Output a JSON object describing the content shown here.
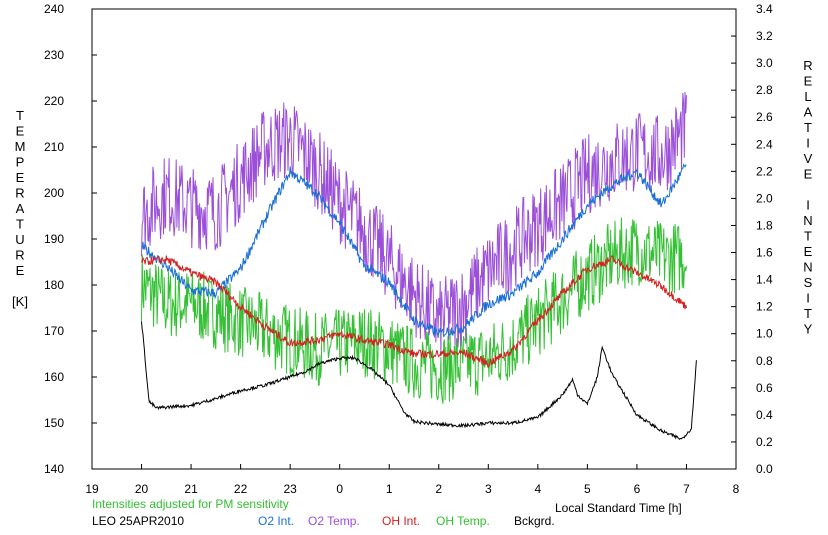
{
  "chart_data": {
    "type": "line",
    "title": "",
    "xlabel": "Local Standard Time [h]",
    "ylabel_left": [
      "T",
      "E",
      "M",
      "P",
      "E",
      "R",
      "A",
      "T",
      "U",
      "R",
      "E",
      "",
      "[K]"
    ],
    "ylabel_right": [
      "R",
      "E",
      "L",
      "A",
      "T",
      "I",
      "V",
      "E",
      "",
      "I",
      "N",
      "T",
      "E",
      "N",
      "S",
      "I",
      "T",
      "Y"
    ],
    "x_ticks": [
      "19",
      "20",
      "21",
      "22",
      "23",
      "0",
      "1",
      "2",
      "3",
      "4",
      "5",
      "6",
      "7",
      "8"
    ],
    "x_range": [
      19,
      32
    ],
    "y_left_ticks": [
      "140",
      "150",
      "160",
      "170",
      "180",
      "190",
      "200",
      "210",
      "220",
      "230",
      "240"
    ],
    "y_left_range": [
      140,
      240
    ],
    "y_right_ticks": [
      "0.0",
      "0.2",
      "0.4",
      "0.6",
      "0.8",
      "1.0",
      "1.2",
      "1.4",
      "1.6",
      "1.8",
      "2.0",
      "2.2",
      "2.4",
      "2.6",
      "2.8",
      "3.0",
      "3.2",
      "3.4"
    ],
    "y_right_range": [
      0,
      3.4
    ],
    "note": "Intensities adjusted for PM sensitivity",
    "site_date": "LEO 25APR2010",
    "grid": false,
    "series": [
      {
        "name": "O2 Int.",
        "axis": "right",
        "color": "#1a6fd6",
        "x": [
          20.0,
          20.5,
          21.0,
          21.5,
          22.0,
          22.5,
          23.0,
          23.5,
          24.0,
          24.5,
          25.0,
          25.5,
          26.0,
          26.5,
          27.0,
          27.5,
          28.0,
          28.5,
          29.0,
          29.5,
          30.0,
          30.5,
          31.0
        ],
        "y": [
          1.65,
          1.5,
          1.32,
          1.3,
          1.48,
          1.85,
          2.2,
          2.05,
          1.82,
          1.5,
          1.38,
          1.1,
          1.0,
          1.05,
          1.22,
          1.3,
          1.45,
          1.7,
          1.95,
          2.1,
          2.2,
          1.95,
          2.25
        ],
        "noise": 0.04
      },
      {
        "name": "O2 Temp.",
        "axis": "left",
        "color": "#9b4fd8",
        "x": [
          20.0,
          20.5,
          21.0,
          21.5,
          22.0,
          22.5,
          23.0,
          23.5,
          24.0,
          24.5,
          25.0,
          25.5,
          26.0,
          26.5,
          27.0,
          27.5,
          28.0,
          28.5,
          29.0,
          29.5,
          30.0,
          30.5,
          31.0
        ],
        "y": [
          195,
          200,
          197,
          196,
          203,
          210,
          212,
          206,
          198,
          192,
          185,
          178,
          172,
          176,
          183,
          188,
          193,
          198,
          204,
          207,
          209,
          208,
          214
        ],
        "noise": 9
      },
      {
        "name": "OH Int.",
        "axis": "right",
        "color": "#d42020",
        "x": [
          20.0,
          20.5,
          21.0,
          21.5,
          22.0,
          22.5,
          23.0,
          23.5,
          24.0,
          24.5,
          25.0,
          25.5,
          26.0,
          26.5,
          27.0,
          27.5,
          28.0,
          28.5,
          29.0,
          29.5,
          30.0,
          30.5,
          31.0
        ],
        "y": [
          1.53,
          1.55,
          1.45,
          1.38,
          1.2,
          1.05,
          0.93,
          0.95,
          1.0,
          0.95,
          0.92,
          0.85,
          0.85,
          0.86,
          0.78,
          0.88,
          1.1,
          1.3,
          1.48,
          1.55,
          1.45,
          1.35,
          1.2
        ],
        "noise": 0.03
      },
      {
        "name": "OH Temp.",
        "axis": "left",
        "color": "#33c033",
        "x": [
          20.0,
          20.5,
          21.0,
          21.5,
          22.0,
          22.5,
          23.0,
          23.5,
          24.0,
          24.5,
          25.0,
          25.5,
          26.0,
          26.5,
          27.0,
          27.5,
          28.0,
          28.5,
          29.0,
          29.5,
          30.0,
          30.5,
          31.0
        ],
        "y": [
          180,
          176,
          176,
          174,
          172,
          170,
          168,
          166,
          167,
          168,
          166,
          163,
          162,
          163,
          164,
          167,
          172,
          177,
          182,
          186,
          188,
          186,
          186
        ],
        "noise": 8
      },
      {
        "name": "Bckgrd.",
        "axis": "right",
        "color": "#000000",
        "x": [
          20.0,
          20.15,
          20.3,
          20.6,
          21.0,
          21.5,
          22.0,
          22.5,
          23.0,
          23.3,
          23.6,
          24.0,
          24.3,
          24.6,
          25.0,
          25.3,
          25.5,
          26.0,
          26.5,
          27.0,
          27.5,
          28.0,
          28.5,
          28.7,
          28.8,
          29.0,
          29.2,
          29.3,
          29.5,
          30.0,
          30.5,
          30.9,
          31.1,
          31.2
        ],
        "y": [
          1.1,
          0.5,
          0.45,
          0.46,
          0.47,
          0.52,
          0.58,
          0.62,
          0.68,
          0.72,
          0.78,
          0.82,
          0.82,
          0.75,
          0.62,
          0.42,
          0.35,
          0.33,
          0.32,
          0.34,
          0.34,
          0.38,
          0.55,
          0.66,
          0.55,
          0.48,
          0.68,
          0.9,
          0.7,
          0.4,
          0.28,
          0.22,
          0.3,
          0.8
        ],
        "noise": 0.012
      }
    ]
  }
}
